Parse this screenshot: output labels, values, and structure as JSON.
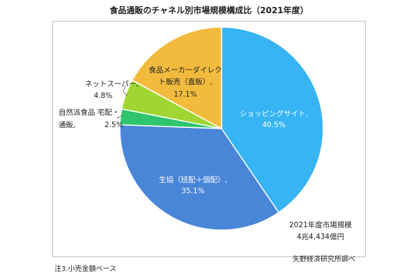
{
  "chart_data": {
    "type": "pie",
    "title": "食品通販のチャネル別市場規模構成比（2021年度）",
    "slices": [
      {
        "label": "ショッピングサイト,",
        "value": 40.5,
        "value_text": "40.5%",
        "color": "#36b4f4",
        "label_color": "#ffffff"
      },
      {
        "label": "生協（班配＋個配）,",
        "value": 35.1,
        "value_text": "35.1%",
        "color": "#4a86d8",
        "label_color": "#ffffff"
      },
      {
        "label": "自然派食品 宅配・通販,",
        "value": 2.5,
        "value_text": "2.5%",
        "color": "#2ec56e",
        "label_color": "#222222"
      },
      {
        "label": "ネットスーパー,",
        "value": 4.8,
        "value_text": "4.8%",
        "color": "#9fd631",
        "label_color": "#222222"
      },
      {
        "label": "食品メーカーダイレクト販売（直販）,",
        "value": 17.1,
        "value_text": "17.1%",
        "color": "#f3bb3d",
        "label_color": "#222222"
      }
    ],
    "total_label": "2021年度市場規模",
    "total_value": "4兆4,434億円"
  },
  "footnote": "注3.小売金額ベース",
  "source": "矢野経済研究所調べ"
}
